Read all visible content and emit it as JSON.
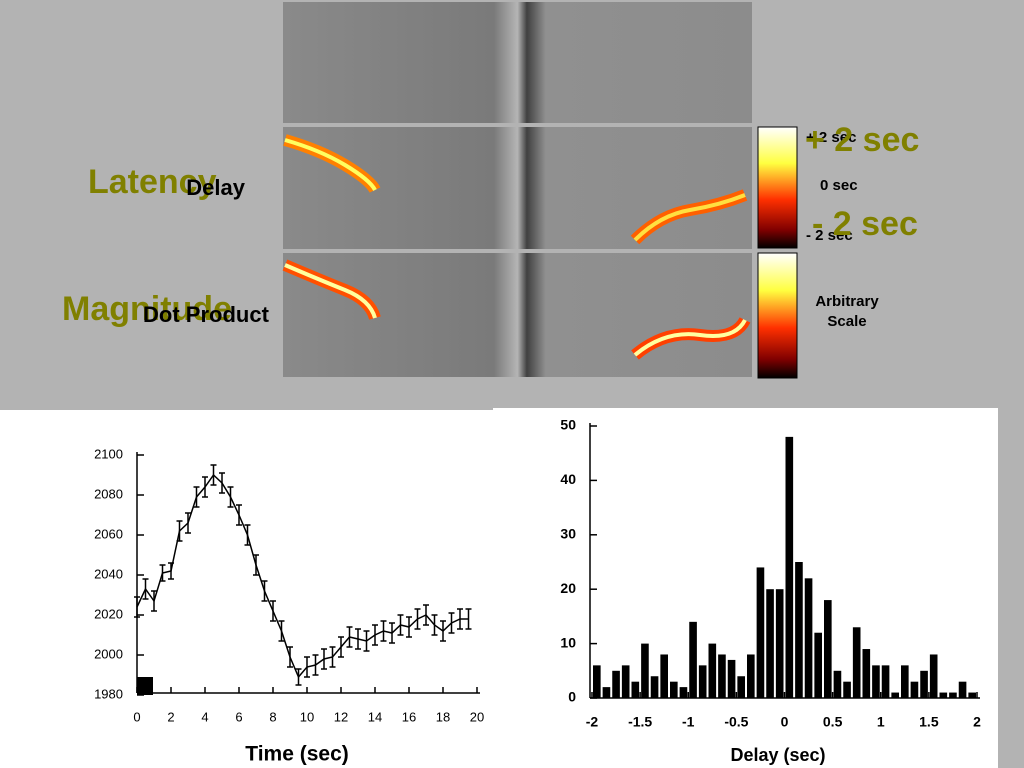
{
  "labels": {
    "latency": "Latency",
    "delay": "Delay",
    "dot_product": "Dot Product",
    "magnitude": "Magnitude",
    "cb_plus": "+ 2 sec",
    "cb_zero": "0 sec",
    "cb_minus": "- 2 sec",
    "big_plus": "+ 2 sec",
    "big_minus": "- 2 sec",
    "arbitrary": "Arbitrary",
    "scale": "Scale"
  },
  "chart_data": [
    {
      "type": "line",
      "xlabel": "Time (sec)",
      "x": [
        0,
        0.5,
        1,
        1.5,
        2,
        2.5,
        3,
        3.5,
        4,
        4.5,
        5,
        5.5,
        6,
        6.5,
        7,
        7.5,
        8,
        8.5,
        9,
        9.5,
        10,
        10.5,
        11,
        11.5,
        12,
        12.5,
        13,
        13.5,
        14,
        14.5,
        15,
        15.5,
        16,
        16.5,
        17,
        17.5,
        18,
        18.5,
        19,
        19.5
      ],
      "values": [
        2024,
        2033,
        2027,
        2041,
        2042,
        2062,
        2066,
        2079,
        2084,
        2090,
        2086,
        2079,
        2070,
        2060,
        2045,
        2032,
        2022,
        2012,
        1999,
        1989,
        1994,
        1995,
        1998,
        1999,
        2004,
        2009,
        2008,
        2007,
        2010,
        2012,
        2011,
        2015,
        2014,
        2018,
        2020,
        2015,
        2012,
        2016,
        2018,
        2018
      ],
      "errors": [
        5,
        5,
        5,
        4,
        4,
        5,
        5,
        5,
        5,
        5,
        5,
        5,
        5,
        5,
        5,
        5,
        5,
        5,
        5,
        4,
        5,
        5,
        5,
        5,
        5,
        5,
        5,
        5,
        5,
        5,
        5,
        5,
        5,
        5,
        5,
        5,
        5,
        5,
        5,
        5
      ],
      "color": "#000000",
      "xlim": [
        0,
        20
      ],
      "xticks": [
        0,
        2,
        4,
        6,
        8,
        10,
        12,
        14,
        16,
        18,
        20
      ],
      "ylim": [
        1980,
        2100
      ],
      "yticks": [
        1980,
        2000,
        2020,
        2040,
        2060,
        2080,
        2100
      ]
    },
    {
      "type": "histogram",
      "xlabel": "Delay (sec)",
      "bins": [
        -2.0,
        -1.9,
        -1.8,
        -1.7,
        -1.6,
        -1.5,
        -1.4,
        -1.3,
        -1.2,
        -1.1,
        -1.0,
        -0.9,
        -0.8,
        -0.7,
        -0.6,
        -0.5,
        -0.4,
        -0.3,
        -0.2,
        -0.1,
        0.0,
        0.1,
        0.2,
        0.3,
        0.4,
        0.5,
        0.6,
        0.7,
        0.8,
        0.9,
        1.0,
        1.1,
        1.2,
        1.3,
        1.4,
        1.5,
        1.6,
        1.7,
        1.8,
        1.9,
        2.0
      ],
      "values": [
        6,
        2,
        5,
        6,
        3,
        10,
        4,
        8,
        3,
        2,
        14,
        6,
        10,
        8,
        7,
        4,
        8,
        24,
        20,
        20,
        48,
        25,
        22,
        12,
        18,
        5,
        3,
        13,
        9,
        6,
        6,
        1,
        6,
        3,
        5,
        8,
        1,
        1,
        3,
        1
      ],
      "color": "#000000",
      "xlim": [
        -2,
        2
      ],
      "xticks": [
        -2,
        -1.5,
        -1,
        -0.5,
        0,
        0.5,
        1,
        1.5,
        2
      ],
      "ylim": [
        0,
        50
      ],
      "yticks": [
        0,
        10,
        20,
        30,
        40,
        50
      ]
    }
  ]
}
